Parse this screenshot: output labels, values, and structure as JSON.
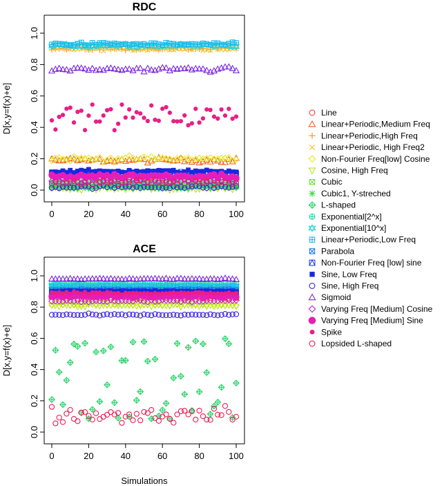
{
  "chart_data": [
    {
      "type": "scatter",
      "title": "RDC",
      "xlabel": "",
      "ylabel": "D[x,y=f(x)+e]",
      "xlim": [
        0,
        100
      ],
      "ylim": [
        0,
        1
      ],
      "xticks": [
        "0",
        "20",
        "40",
        "60",
        "80",
        "100"
      ],
      "yticks": [
        "0.0",
        "0.2",
        "0.4",
        "0.6",
        "0.8",
        "1.0"
      ],
      "series": [
        {
          "name": "Line",
          "center": 0.08,
          "spread": 0.02
        },
        {
          "name": "Linear+Periodic,Medium Freq",
          "center": 0.19,
          "spread": 0.015
        },
        {
          "name": "Linear+Periodic,High Freq",
          "center": 0.9,
          "spread": 0.01
        },
        {
          "name": "Linear+Periodic, High Freq2",
          "center": 0.9,
          "spread": 0.01
        },
        {
          "name": "Non-Fourier Freq[low] Cosine",
          "center": 0.2,
          "spread": 0.015
        },
        {
          "name": "Cosine, High Freq",
          "center": 0.01,
          "spread": 0.01
        },
        {
          "name": "Cubic",
          "center": 0.03,
          "spread": 0.01
        },
        {
          "name": "Cubic1, Y-streched",
          "center": 0.03,
          "spread": 0.01
        },
        {
          "name": "L-shaped",
          "center": 0.02,
          "spread": 0.01
        },
        {
          "name": "Exponential[2^x]",
          "center": 0.05,
          "spread": 0.01
        },
        {
          "name": "Exponential[10^x]",
          "center": 0.92,
          "spread": 0.01
        },
        {
          "name": "Linear+Periodic,Low Freq",
          "center": 0.93,
          "spread": 0.01
        },
        {
          "name": "Parabola",
          "center": 0.11,
          "spread": 0.01
        },
        {
          "name": "Non-Fourier Freq [low] sine",
          "center": 0.1,
          "spread": 0.01
        },
        {
          "name": "Sine, Low Freq",
          "center": 0.12,
          "spread": 0.01
        },
        {
          "name": "Sine, High Freq",
          "center": 0.02,
          "spread": 0.01
        },
        {
          "name": "Sigmoid",
          "center": 0.77,
          "spread": 0.015
        },
        {
          "name": "Varying Freq [Medium] Cosine",
          "center": 0.06,
          "spread": 0.015
        },
        {
          "name": "Varying Freq [Medium] Sine",
          "center": 0.09,
          "spread": 0.015
        },
        {
          "name": "Spike",
          "center": 0.47,
          "spread": 0.07
        },
        {
          "name": "Lopsided L-shaped",
          "center": 0.05,
          "spread": 0.015
        }
      ]
    },
    {
      "type": "scatter",
      "title": "ACE",
      "xlabel": "Simulations",
      "ylabel": "D[x,y=f(x)+e]",
      "xlim": [
        0,
        100
      ],
      "ylim": [
        0,
        1
      ],
      "xticks": [
        "0",
        "20",
        "40",
        "60",
        "80",
        "100"
      ],
      "yticks": [
        "0.0",
        "0.2",
        "0.4",
        "0.6",
        "0.8",
        "1.0"
      ],
      "series": [
        {
          "name": "Line",
          "center": 0.88,
          "spread": 0.01
        },
        {
          "name": "Linear+Periodic,Medium Freq",
          "center": 0.86,
          "spread": 0.01
        },
        {
          "name": "Linear+Periodic,High Freq",
          "center": 0.87,
          "spread": 0.01
        },
        {
          "name": "Linear+Periodic, High Freq2",
          "center": 0.88,
          "spread": 0.01
        },
        {
          "name": "Non-Fourier Freq[low] Cosine",
          "center": 0.82,
          "spread": 0.01
        },
        {
          "name": "Cosine, High Freq",
          "center": 0.81,
          "spread": 0.01
        },
        {
          "name": "Cubic",
          "center": 0.93,
          "spread": 0.005
        },
        {
          "name": "Cubic1, Y-streched",
          "center": 0.92,
          "spread": 0.005
        },
        {
          "name": "L-shaped",
          "center": 0.3,
          "spread": 0.15
        },
        {
          "name": "Exponential[2^x]",
          "center": 0.95,
          "spread": 0.005
        },
        {
          "name": "Exponential[10^x]",
          "center": 0.94,
          "spread": 0.005
        },
        {
          "name": "Linear+Periodic,Low Freq",
          "center": 0.93,
          "spread": 0.005
        },
        {
          "name": "Parabola",
          "center": 0.91,
          "spread": 0.005
        },
        {
          "name": "Non-Fourier Freq [low] sine",
          "center": 0.9,
          "spread": 0.005
        },
        {
          "name": "Sine, Low Freq",
          "center": 0.9,
          "spread": 0.005
        },
        {
          "name": "Sine, High Freq",
          "center": 0.75,
          "spread": 0.006
        },
        {
          "name": "Sigmoid",
          "center": 0.98,
          "spread": 0.004
        },
        {
          "name": "Varying Freq [Medium] Cosine",
          "center": 0.84,
          "spread": 0.008
        },
        {
          "name": "Varying Freq [Medium] Sine",
          "center": 0.87,
          "spread": 0.01
        },
        {
          "name": "Spike",
          "center": 0.89,
          "spread": 0.008
        },
        {
          "name": "Lopsided L-shaped",
          "center": 0.11,
          "spread": 0.05
        }
      ]
    }
  ],
  "legend": [
    {
      "label": "Line",
      "color": "#e8413e",
      "shape": "circle",
      "fill": false
    },
    {
      "label": "Linear+Periodic,Medium Freq",
      "color": "#f4601e",
      "shape": "triangle",
      "fill": false
    },
    {
      "label": "Linear+Periodic,High Freq",
      "color": "#f8901f",
      "shape": "plus",
      "fill": false
    },
    {
      "label": "Linear+Periodic, High Freq2",
      "color": "#f6c21c",
      "shape": "cross",
      "fill": false
    },
    {
      "label": "Non-Fourier Freq[low] Cosine",
      "color": "#e4e81c",
      "shape": "diamond",
      "fill": false
    },
    {
      "label": "Cosine, High Freq",
      "color": "#b4e81a",
      "shape": "triangle-down",
      "fill": false
    },
    {
      "label": "Cubic",
      "color": "#7ee22a",
      "shape": "square-x",
      "fill": false
    },
    {
      "label": "Cubic1, Y-streched",
      "color": "#3ad83a",
      "shape": "asterisk",
      "fill": false
    },
    {
      "label": "L-shaped",
      "color": "#2ad46a",
      "shape": "diamond-plus",
      "fill": false
    },
    {
      "label": "Exponential[2^x]",
      "color": "#22d6a6",
      "shape": "circle-plus",
      "fill": false
    },
    {
      "label": "Exponential[10^x]",
      "color": "#1ed8d8",
      "shape": "star-of-david",
      "fill": false
    },
    {
      "label": "Linear+Periodic,Low Freq",
      "color": "#1ab8ec",
      "shape": "square-plus",
      "fill": false
    },
    {
      "label": "Parabola",
      "color": "#2076ee",
      "shape": "square-x",
      "fill": false
    },
    {
      "label": "Non-Fourier Freq [low] sine",
      "color": "#2a3cec",
      "shape": "triangle-in-square",
      "fill": false
    },
    {
      "label": "Sine, Low Freq",
      "color": "#1828e0",
      "shape": "square",
      "fill": true
    },
    {
      "label": "Sine, High Freq",
      "color": "#3a24d6",
      "shape": "circle",
      "fill": true
    },
    {
      "label": "Sigmoid",
      "color": "#7a24dc",
      "shape": "triangle",
      "fill": true
    },
    {
      "label": "Varying Freq [Medium] Cosine",
      "color": "#c020d8",
      "shape": "diamond",
      "fill": true
    },
    {
      "label": "Varying Freq [Medium] Sine",
      "color": "#e61eb8",
      "shape": "bigcircle",
      "fill": true
    },
    {
      "label": "Spike",
      "color": "#ea1e86",
      "shape": "smallcircle",
      "fill": true
    },
    {
      "label": "Lopsided L-shaped",
      "color": "#ea1e52",
      "shape": "circle",
      "fill": false
    }
  ]
}
